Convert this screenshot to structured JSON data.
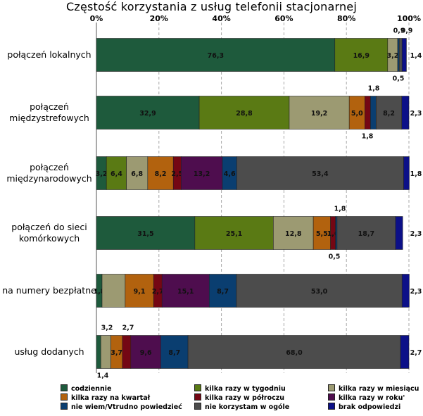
{
  "chart_data": {
    "type": "bar",
    "orientation": "horizontal",
    "stacked": true,
    "title": "Częstość korzystania z usług telefonii stacjonarnej",
    "x_ticks": [
      "0%",
      "20%",
      "40%",
      "60%",
      "80%",
      "100%"
    ],
    "xlim": [
      0,
      100
    ],
    "categories": [
      [
        "połączeń lokalnych"
      ],
      [
        "połączeń",
        "międzystrefowych"
      ],
      [
        "połączeń",
        "międzynarodowych"
      ],
      [
        "połączeń do sieci",
        "komórkowych"
      ],
      [
        "na numery bezpłatne"
      ],
      [
        "usług dodanych"
      ]
    ],
    "series": [
      {
        "name": "codziennie",
        "color": "#1e5a3c",
        "values": [
          76.3,
          32.9,
          3.2,
          31.5,
          1.8,
          1.4
        ],
        "labels": [
          "76,3",
          "32,9",
          "3,2",
          "31,5",
          "1,8",
          ""
        ]
      },
      {
        "name": "kilka razy w tygodniu",
        "color": "#5a7a14",
        "values": [
          16.9,
          28.8,
          6.4,
          25.1,
          0,
          0
        ],
        "labels": [
          "16,9",
          "28,8",
          "6,4",
          "25,1",
          "",
          ""
        ]
      },
      {
        "name": "kilka razy w miesiącu",
        "color": "#9c9a72",
        "values": [
          3.2,
          19.2,
          6.8,
          12.8,
          7.4,
          3.2
        ],
        "labels": [
          "3,2",
          "19,2",
          "6,8",
          "12,8",
          "",
          ""
        ]
      },
      {
        "name": "kilka razy na kwartał",
        "color": "#b2620e",
        "values": [
          0,
          5.0,
          8.2,
          5.5,
          9.1,
          3.7
        ],
        "labels": [
          "",
          "5,0",
          "8,2",
          "5,5",
          "9,1",
          "3,7"
        ]
      },
      {
        "name": "kilka razy w półroczu",
        "color": "#740714",
        "values": [
          0,
          1.8,
          2.5,
          1.6,
          2.7,
          2.7
        ],
        "labels": [
          "",
          "",
          "2,5",
          "1,6",
          "2,7",
          ""
        ]
      },
      {
        "name": "kilka razy w roku'",
        "color": "#4e0d4e",
        "values": [
          0,
          0,
          13.2,
          0,
          15.1,
          9.6
        ],
        "labels": [
          "",
          "",
          "13,2",
          "",
          "15,1",
          "9,6"
        ]
      },
      {
        "name": "nie wiem/Vtrudno powiedzieć",
        "color": "#0a3e70",
        "values": [
          0.5,
          1.8,
          4.6,
          0.5,
          8.7,
          8.7
        ],
        "labels": [
          "",
          "",
          "4,6",
          "",
          "8,7",
          "8,7"
        ]
      },
      {
        "name": "nie korzystam w ogóle",
        "color": "#4c4c4c",
        "values": [
          0.9,
          8.2,
          53.4,
          18.7,
          53.0,
          68.0
        ],
        "labels": [
          "",
          "8,2",
          "53,4",
          "18,7",
          "53,0",
          "68,0"
        ]
      },
      {
        "name": "brak odpowiedzi",
        "color": "#0c1088",
        "values": [
          1.4,
          2.3,
          1.8,
          2.3,
          2.3,
          2.7
        ],
        "labels": [
          "",
          "",
          "",
          "",
          "",
          ""
        ]
      }
    ],
    "right_labels": [
      "1,4",
      "2,3",
      "1,8",
      "2,3",
      "2,3",
      "2,7"
    ],
    "annotations": [
      {
        "row": 0,
        "pos": "above",
        "text": "0,9"
      },
      {
        "row": 0,
        "pos": "above",
        "text": "0,9"
      },
      {
        "row": 0,
        "pos": "below",
        "text": "0,5"
      },
      {
        "row": 1,
        "pos": "above",
        "text": "1,8"
      },
      {
        "row": 1,
        "pos": "below",
        "text": "1,8"
      },
      {
        "row": 3,
        "pos": "above",
        "text": "1,8"
      },
      {
        "row": 3,
        "pos": "below",
        "text": "0,5"
      },
      {
        "row": 5,
        "pos": "above",
        "text": "3,2"
      },
      {
        "row": 5,
        "pos": "above",
        "text": "2,7"
      },
      {
        "row": 5,
        "pos": "below",
        "text": "1,4"
      }
    ],
    "legend_position": "bottom"
  }
}
